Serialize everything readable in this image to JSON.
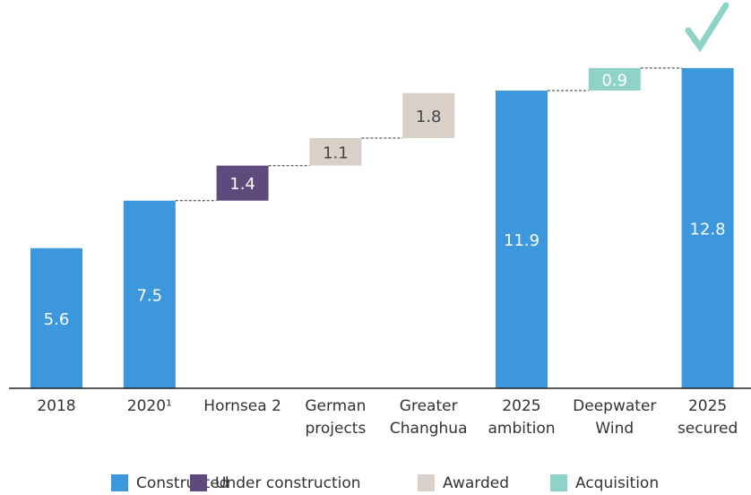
{
  "chart_data": {
    "type": "waterfall",
    "categories": [
      [
        "2018"
      ],
      [
        "2020¹"
      ],
      [
        "Hornsea 2"
      ],
      [
        "German",
        "projects"
      ],
      [
        "Greater",
        "Changhua"
      ],
      [
        "2025",
        "ambition"
      ],
      [
        "Deepwater",
        "Wind"
      ],
      [
        "2025",
        "secured"
      ]
    ],
    "is_total": [
      true,
      true,
      false,
      false,
      false,
      true,
      false,
      true
    ],
    "series": [
      {
        "name": "Constructed",
        "color": "#3d97dc",
        "values": [
          5.6,
          7.5,
          null,
          null,
          null,
          11.9,
          null,
          12.8
        ]
      },
      {
        "name": "Under construction",
        "color": "#5e4a7d",
        "values": [
          null,
          null,
          1.4,
          null,
          null,
          null,
          null,
          null
        ]
      },
      {
        "name": "Awarded",
        "color": "#d9d1c9",
        "values": [
          null,
          null,
          null,
          1.1,
          1.8,
          null,
          null,
          null
        ]
      },
      {
        "name": "Acquisition",
        "color": "#8fd3c8",
        "values": [
          null,
          null,
          null,
          null,
          null,
          null,
          0.9,
          null
        ]
      }
    ],
    "legend": "bottom"
  }
}
